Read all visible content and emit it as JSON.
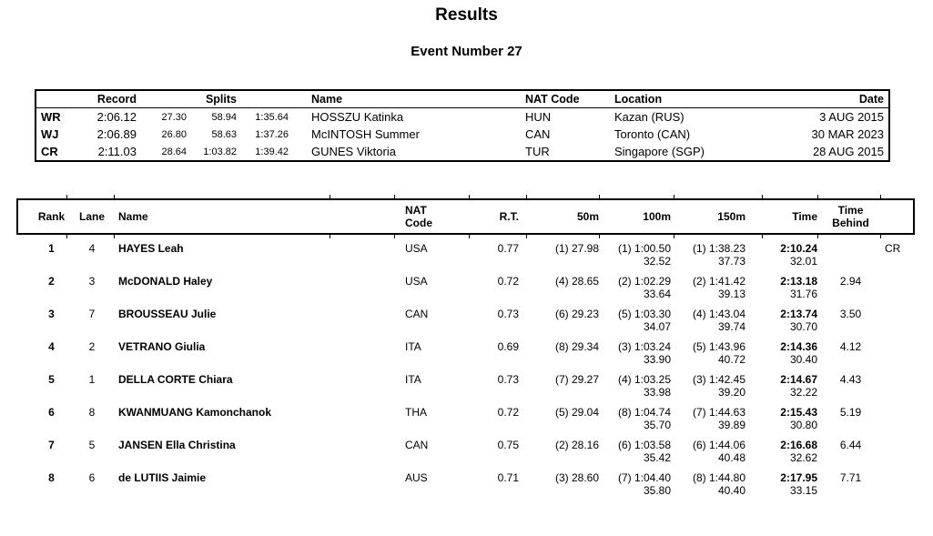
{
  "page": {
    "title": "Results",
    "subtitle": "Event Number 27"
  },
  "colors": {
    "text": "#000000",
    "background": "#ffffff",
    "border": "#000000"
  },
  "records_table": {
    "headers": {
      "record": "Record",
      "splits": "Splits",
      "name": "Name",
      "nat": "NAT Code",
      "location": "Location",
      "date": "Date"
    },
    "rows": [
      {
        "code": "WR",
        "time": "2:06.12",
        "split1": "27.30",
        "split2": "58.94",
        "split3": "1:35.64",
        "name": "HOSSZU Katinka",
        "nat": "HUN",
        "location": "Kazan (RUS)",
        "date": "3 AUG 2015"
      },
      {
        "code": "WJ",
        "time": "2:06.89",
        "split1": "26.80",
        "split2": "58.63",
        "split3": "1:37.26",
        "name": "McINTOSH Summer",
        "nat": "CAN",
        "location": "Toronto (CAN)",
        "date": "30 MAR 2023"
      },
      {
        "code": "CR",
        "time": "2:11.03",
        "split1": "28.64",
        "split2": "1:03.82",
        "split3": "1:39.42",
        "name": "GUNES Viktoria",
        "nat": "TUR",
        "location": "Singapore (SGP)",
        "date": "28 AUG 2015"
      }
    ]
  },
  "results_table": {
    "headers": {
      "rank": "Rank",
      "lane": "Lane",
      "name": "Name",
      "nat": "NAT Code",
      "rt": "R.T.",
      "m50": "50m",
      "m100": "100m",
      "m150": "150m",
      "time": "Time",
      "behind": "Time Behind"
    },
    "rows": [
      {
        "rank": "1",
        "lane": "4",
        "name": "HAYES Leah",
        "nat": "USA",
        "rt": "0.77",
        "m50": "(1) 27.98",
        "m100": "(1) 1:00.50",
        "m100_split": "32.52",
        "m150": "(1) 1:38.23",
        "m150_split": "37.73",
        "time": "2:10.24",
        "time_split": "32.01",
        "behind": "",
        "note": "CR"
      },
      {
        "rank": "2",
        "lane": "3",
        "name": "McDONALD Haley",
        "nat": "USA",
        "rt": "0.72",
        "m50": "(4) 28.65",
        "m100": "(2) 1:02.29",
        "m100_split": "33.64",
        "m150": "(2) 1:41.42",
        "m150_split": "39.13",
        "time": "2:13.18",
        "time_split": "31.76",
        "behind": "2.94",
        "note": ""
      },
      {
        "rank": "3",
        "lane": "7",
        "name": "BROUSSEAU Julie",
        "nat": "CAN",
        "rt": "0.73",
        "m50": "(6) 29.23",
        "m100": "(5) 1:03.30",
        "m100_split": "34.07",
        "m150": "(4) 1:43.04",
        "m150_split": "39.74",
        "time": "2:13.74",
        "time_split": "30.70",
        "behind": "3.50",
        "note": ""
      },
      {
        "rank": "4",
        "lane": "2",
        "name": "VETRANO Giulia",
        "nat": "ITA",
        "rt": "0.69",
        "m50": "(8) 29.34",
        "m100": "(3) 1:03.24",
        "m100_split": "33.90",
        "m150": "(5) 1:43.96",
        "m150_split": "40.72",
        "time": "2:14.36",
        "time_split": "30.40",
        "behind": "4.12",
        "note": ""
      },
      {
        "rank": "5",
        "lane": "1",
        "name": "DELLA CORTE Chiara",
        "nat": "ITA",
        "rt": "0.73",
        "m50": "(7) 29.27",
        "m100": "(4) 1:03.25",
        "m100_split": "33.98",
        "m150": "(3) 1:42.45",
        "m150_split": "39.20",
        "time": "2:14.67",
        "time_split": "32.22",
        "behind": "4.43",
        "note": ""
      },
      {
        "rank": "6",
        "lane": "8",
        "name": "KWANMUANG Kamonchanok",
        "nat": "THA",
        "rt": "0.72",
        "m50": "(5) 29.04",
        "m100": "(8) 1:04.74",
        "m100_split": "35.70",
        "m150": "(7) 1:44.63",
        "m150_split": "39.89",
        "time": "2:15.43",
        "time_split": "30.80",
        "behind": "5.19",
        "note": ""
      },
      {
        "rank": "7",
        "lane": "5",
        "name": "JANSEN Ella Christina",
        "nat": "CAN",
        "rt": "0.75",
        "m50": "(2) 28.16",
        "m100": "(6) 1:03.58",
        "m100_split": "35.42",
        "m150": "(6) 1:44.06",
        "m150_split": "40.48",
        "time": "2:16.68",
        "time_split": "32.62",
        "behind": "6.44",
        "note": ""
      },
      {
        "rank": "8",
        "lane": "6",
        "name": "de LUTIIS Jaimie",
        "nat": "AUS",
        "rt": "0.71",
        "m50": "(3) 28.60",
        "m100": "(7) 1:04.40",
        "m100_split": "35.80",
        "m150": "(8) 1:44.80",
        "m150_split": "40.40",
        "time": "2:17.95",
        "time_split": "33.15",
        "behind": "7.71",
        "note": ""
      }
    ]
  }
}
